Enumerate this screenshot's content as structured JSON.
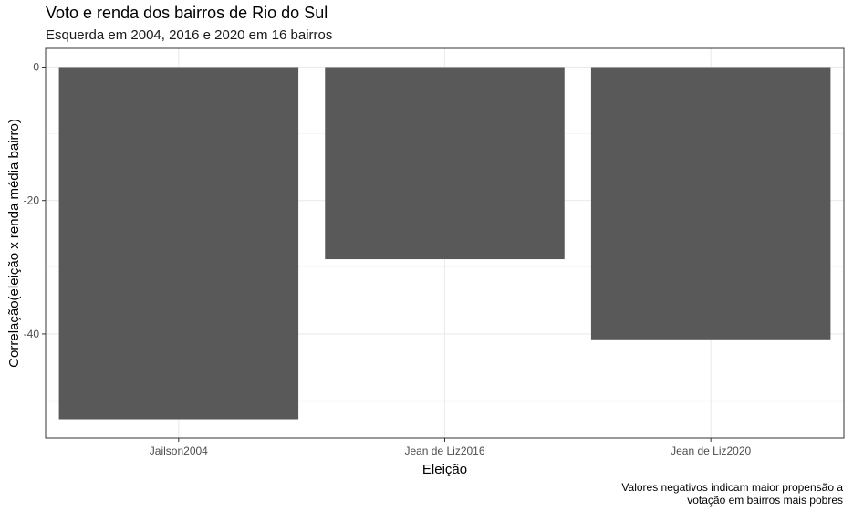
{
  "chart_data": {
    "type": "bar",
    "title": "Voto e renda dos bairros de Rio do Sul",
    "subtitle": "Esquerda em 2004, 2016 e 2020 em 16 bairros",
    "xlabel": "Eleição",
    "ylabel": "Correlação(eleição x renda média bairro)",
    "categories": [
      "Jailson2004",
      "Jean de Liz2016",
      "Jean de Liz2020"
    ],
    "values": [
      -52.8,
      -28.8,
      -40.8
    ],
    "ylim": [
      -55.6,
      0
    ],
    "yticks": [
      0,
      -20,
      -40
    ],
    "ytick_labels": [
      "0",
      "-20",
      "-40"
    ],
    "bar_color": "#595959",
    "grid": true,
    "caption_lines": [
      "Valores negativos indicam maior propensão a",
      "votação em bairros mais pobres"
    ]
  }
}
